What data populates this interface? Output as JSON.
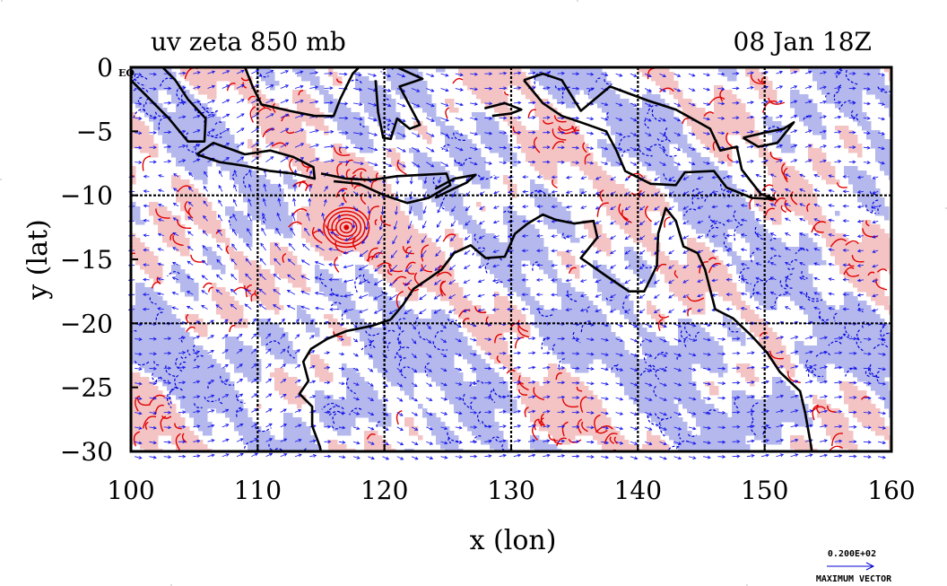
{
  "chart_data": {
    "type": "heatmap",
    "title_left": "uv zeta 850 mb",
    "title_right": "08 Jan 18Z",
    "xlabel": "x (lon)",
    "ylabel": "y (lat)",
    "xlim": [
      100,
      160
    ],
    "ylim": [
      -30,
      0
    ],
    "xticks": [
      100,
      110,
      120,
      130,
      140,
      150,
      160
    ],
    "yticks": [
      0,
      -5,
      -10,
      -15,
      -20,
      -25,
      -30
    ],
    "ytick_labels": [
      "0",
      "−5",
      "−10",
      "−15",
      "−20",
      "−25",
      "−30"
    ],
    "ytick_top_suffix": "EQ",
    "grid": true,
    "grid_lon": [
      110,
      120,
      130,
      140,
      150
    ],
    "grid_lat": [
      -10,
      -20
    ],
    "colors": {
      "positive_fill": "#f4c4c4",
      "negative_fill": "#b4b8ec",
      "positive_contour": "#e00000",
      "negative_contour": "#0000dd",
      "vector": "#1010ee",
      "coast": "#000000"
    },
    "features": {
      "cyclone_center": {
        "lon": 117,
        "lat": -12.5
      }
    },
    "reference_vector": {
      "value_label": "0.200E+02",
      "caption": "MAXIMUM VECTOR"
    }
  }
}
